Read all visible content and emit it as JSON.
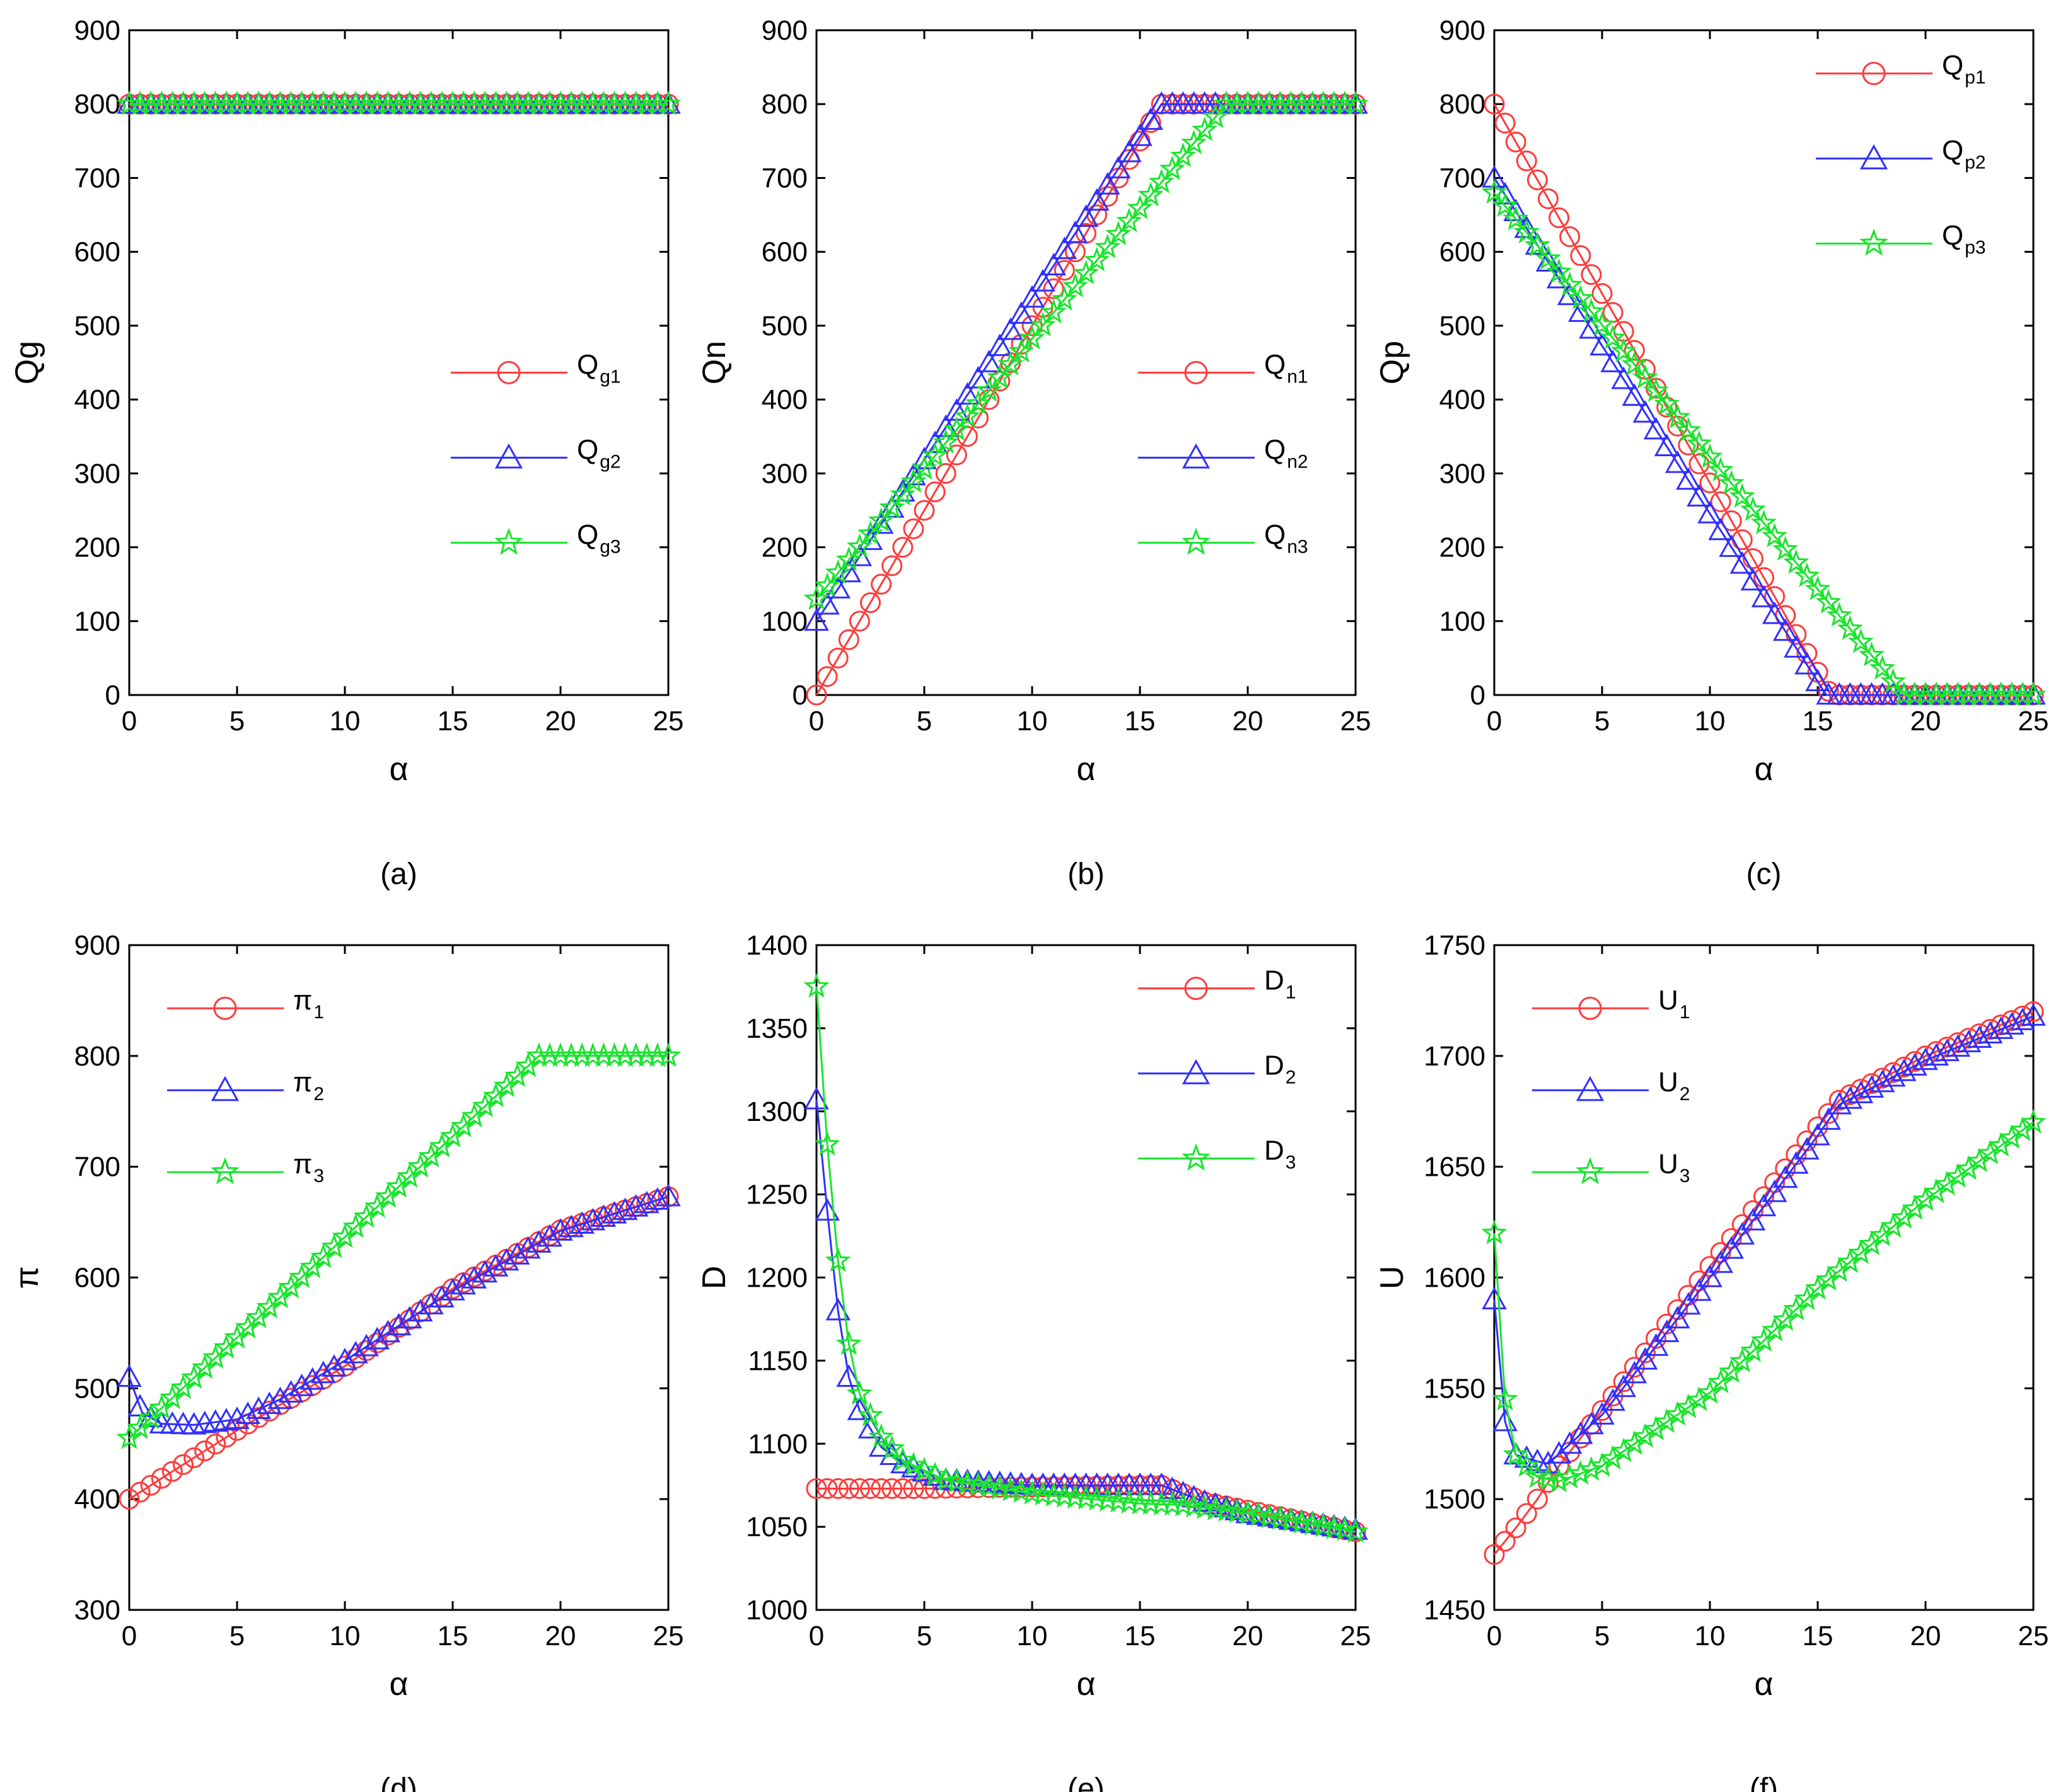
{
  "figure": {
    "colors": {
      "red": "#ff3b3b",
      "blue": "#3030ff",
      "green": "#19e52c",
      "axis": "#000000"
    },
    "markers": {
      "series1": "circle",
      "series2": "triangle",
      "series3": "star"
    }
  },
  "chart_data": [
    {
      "type": "line",
      "caption": "(a)",
      "xlabel": "α",
      "ylabel": "Qg",
      "xlim": [
        0,
        25
      ],
      "ylim": [
        0,
        900
      ],
      "xticks": [
        0,
        5,
        10,
        15,
        20,
        25
      ],
      "yticks": [
        0,
        100,
        200,
        300,
        400,
        500,
        600,
        700,
        800,
        900
      ],
      "legend_position": "center-right",
      "series": [
        {
          "name": "Q",
          "sub": "g1",
          "color": "#ff3b3b",
          "marker": "circle",
          "points": [
            [
              0,
              800
            ],
            [
              25,
              800
            ]
          ]
        },
        {
          "name": "Q",
          "sub": "g2",
          "color": "#3030ff",
          "marker": "triangle",
          "points": [
            [
              0,
              800
            ],
            [
              25,
              800
            ]
          ]
        },
        {
          "name": "Q",
          "sub": "g3",
          "color": "#19e52c",
          "marker": "star",
          "points": [
            [
              0,
              800
            ],
            [
              25,
              800
            ]
          ]
        }
      ]
    },
    {
      "type": "line",
      "caption": "(b)",
      "xlabel": "α",
      "ylabel": "Qn",
      "xlim": [
        0,
        25
      ],
      "ylim": [
        0,
        900
      ],
      "xticks": [
        0,
        5,
        10,
        15,
        20,
        25
      ],
      "yticks": [
        0,
        100,
        200,
        300,
        400,
        500,
        600,
        700,
        800,
        900
      ],
      "legend_position": "center-right",
      "series": [
        {
          "name": "Q",
          "sub": "n1",
          "color": "#ff3b3b",
          "marker": "circle",
          "points": [
            [
              0,
              0
            ],
            [
              16,
              800
            ],
            [
              25,
              800
            ]
          ]
        },
        {
          "name": "Q",
          "sub": "n2",
          "color": "#3030ff",
          "marker": "triangle",
          "points": [
            [
              0,
              100
            ],
            [
              16,
              800
            ],
            [
              25,
              800
            ]
          ]
        },
        {
          "name": "Q",
          "sub": "n3",
          "color": "#19e52c",
          "marker": "star",
          "points": [
            [
              0,
              130
            ],
            [
              19,
              800
            ],
            [
              25,
              800
            ]
          ]
        }
      ]
    },
    {
      "type": "line",
      "caption": "(c)",
      "xlabel": "α",
      "ylabel": "Qp",
      "xlim": [
        0,
        25
      ],
      "ylim": [
        0,
        900
      ],
      "xticks": [
        0,
        5,
        10,
        15,
        20,
        25
      ],
      "yticks": [
        0,
        100,
        200,
        300,
        400,
        500,
        600,
        700,
        800,
        900
      ],
      "legend_position": "top-right",
      "series": [
        {
          "name": "Q",
          "sub": "p1",
          "color": "#ff3b3b",
          "marker": "circle",
          "points": [
            [
              0,
              800
            ],
            [
              15.6,
              0
            ],
            [
              25,
              0
            ]
          ]
        },
        {
          "name": "Q",
          "sub": "p2",
          "color": "#3030ff",
          "marker": "triangle",
          "points": [
            [
              0,
              700
            ],
            [
              15.4,
              0
            ],
            [
              25,
              0
            ]
          ]
        },
        {
          "name": "Q",
          "sub": "p3",
          "color": "#19e52c",
          "marker": "star",
          "points": [
            [
              0,
              680
            ],
            [
              19,
              0
            ],
            [
              25,
              0
            ]
          ]
        }
      ]
    },
    {
      "type": "line",
      "caption": "(d)",
      "xlabel": "α",
      "ylabel": "π",
      "xlim": [
        0,
        25
      ],
      "ylim": [
        300,
        900
      ],
      "xticks": [
        0,
        5,
        10,
        15,
        20,
        25
      ],
      "yticks": [
        300,
        400,
        500,
        600,
        700,
        800,
        900
      ],
      "legend_position": "top-left",
      "series": [
        {
          "name": "π",
          "sub": "1",
          "color": "#ff3b3b",
          "marker": "circle",
          "points": [
            [
              0,
              400
            ],
            [
              2,
              425
            ],
            [
              5,
              462
            ],
            [
              10,
              520
            ],
            [
              15,
              590
            ],
            [
              20,
              643
            ],
            [
              25,
              673
            ]
          ]
        },
        {
          "name": "π",
          "sub": "2",
          "color": "#3030ff",
          "marker": "triangle",
          "points": [
            [
              0,
              510
            ],
            [
              0.6,
              478
            ],
            [
              1.5,
              468
            ],
            [
              3,
              467
            ],
            [
              5,
              472
            ],
            [
              7,
              490
            ],
            [
              10,
              525
            ],
            [
              15,
              588
            ],
            [
              20,
              642
            ],
            [
              25,
              673
            ]
          ]
        },
        {
          "name": "π",
          "sub": "3",
          "color": "#19e52c",
          "marker": "star",
          "points": [
            [
              0,
              455
            ],
            [
              19,
              800
            ],
            [
              25,
              800
            ]
          ]
        }
      ]
    },
    {
      "type": "line",
      "caption": "(e)",
      "xlabel": "α",
      "ylabel": "D",
      "xlim": [
        0,
        25
      ],
      "ylim": [
        1000,
        1400
      ],
      "xticks": [
        0,
        5,
        10,
        15,
        20,
        25
      ],
      "yticks": [
        1000,
        1050,
        1100,
        1150,
        1200,
        1250,
        1300,
        1350,
        1400
      ],
      "legend_position": "top-right",
      "series": [
        {
          "name": "D",
          "sub": "1",
          "color": "#ff3b3b",
          "marker": "circle",
          "points": [
            [
              0,
              1073
            ],
            [
              5,
              1073
            ],
            [
              10,
              1074
            ],
            [
              16,
              1075
            ],
            [
              18,
              1065
            ],
            [
              20,
              1060
            ],
            [
              25,
              1047
            ]
          ]
        },
        {
          "name": "D",
          "sub": "2",
          "color": "#3030ff",
          "marker": "triangle",
          "points": [
            [
              0,
              1307
            ],
            [
              0.5,
              1240
            ],
            [
              1,
              1180
            ],
            [
              1.5,
              1140
            ],
            [
              2,
              1120
            ],
            [
              3,
              1098
            ],
            [
              4,
              1088
            ],
            [
              6,
              1078
            ],
            [
              10,
              1075
            ],
            [
              16,
              1075
            ],
            [
              18,
              1065
            ],
            [
              20,
              1058
            ],
            [
              25,
              1048
            ]
          ]
        },
        {
          "name": "D",
          "sub": "3",
          "color": "#19e52c",
          "marker": "star",
          "points": [
            [
              0,
              1375
            ],
            [
              0.5,
              1280
            ],
            [
              1,
              1210
            ],
            [
              1.5,
              1160
            ],
            [
              2,
              1130
            ],
            [
              3,
              1104
            ],
            [
              4,
              1090
            ],
            [
              6,
              1078
            ],
            [
              10,
              1070
            ],
            [
              15,
              1064
            ],
            [
              17,
              1063
            ],
            [
              20,
              1058
            ],
            [
              25,
              1047
            ]
          ]
        }
      ]
    },
    {
      "type": "line",
      "caption": "(f)",
      "xlabel": "α",
      "ylabel": "U",
      "xlim": [
        0,
        25
      ],
      "ylim": [
        1450,
        1750
      ],
      "xticks": [
        0,
        5,
        10,
        15,
        20,
        25
      ],
      "yticks": [
        1450,
        1500,
        1550,
        1600,
        1650,
        1700,
        1750
      ],
      "legend_position": "top-left",
      "series": [
        {
          "name": "U",
          "sub": "1",
          "color": "#ff3b3b",
          "marker": "circle",
          "points": [
            [
              0,
              1475
            ],
            [
              1,
              1487
            ],
            [
              2,
              1500
            ],
            [
              3,
              1515
            ],
            [
              5,
              1540
            ],
            [
              10,
              1605
            ],
            [
              15,
              1668
            ],
            [
              16,
              1680
            ],
            [
              20,
              1700
            ],
            [
              25,
              1720
            ]
          ]
        },
        {
          "name": "U",
          "sub": "2",
          "color": "#3030ff",
          "marker": "triangle",
          "points": [
            [
              0,
              1590
            ],
            [
              0.5,
              1535
            ],
            [
              1,
              1520
            ],
            [
              2,
              1517
            ],
            [
              2.5,
              1516
            ],
            [
              5,
              1538
            ],
            [
              10,
              1600
            ],
            [
              15,
              1664
            ],
            [
              16,
              1678
            ],
            [
              20,
              1698
            ],
            [
              25,
              1718
            ]
          ]
        },
        {
          "name": "U",
          "sub": "3",
          "color": "#19e52c",
          "marker": "star",
          "points": [
            [
              0,
              1620
            ],
            [
              0.5,
              1545
            ],
            [
              1,
              1520
            ],
            [
              2,
              1510
            ],
            [
              3,
              1508
            ],
            [
              5,
              1515
            ],
            [
              10,
              1548
            ],
            [
              15,
              1595
            ],
            [
              20,
              1635
            ],
            [
              25,
              1670
            ]
          ]
        }
      ]
    }
  ]
}
